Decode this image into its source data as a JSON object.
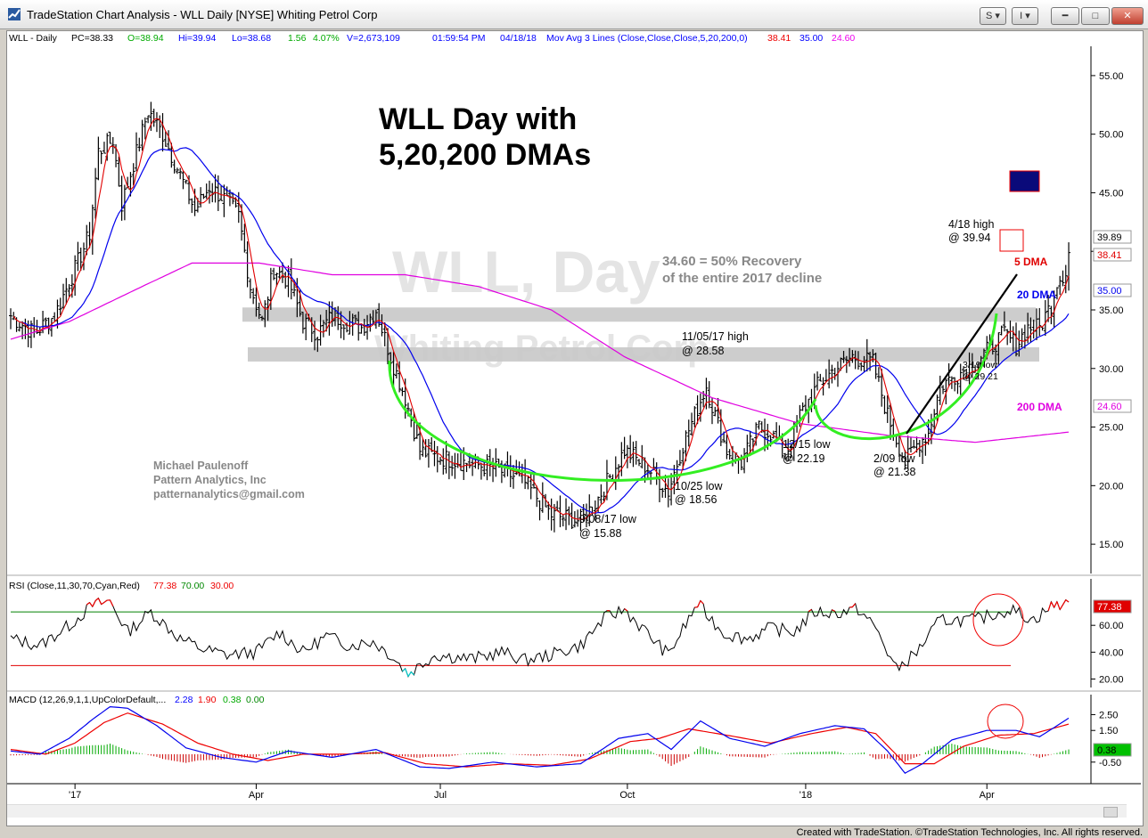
{
  "window": {
    "title": "TradeStation Chart Analysis - WLL Daily [NYSE] Whiting Petrol Corp",
    "btn_s": "S",
    "btn_i": "I",
    "footer": "Created with TradeStation. ©TradeStation Technologies, Inc. All rights reserved."
  },
  "colors": {
    "price": "#000000",
    "ma5": "#e00000",
    "ma20": "#0000ee",
    "ma200": "#e000e0",
    "cup": "#33ee22",
    "rsi_ob": "#008000",
    "rsi_os": "#e00000",
    "macd_up": "#00aa00",
    "macd_down": "#cc0000"
  },
  "chart_data": [
    {
      "type": "line",
      "panel": "price",
      "header": {
        "symbol": "WLL - Daily",
        "pc": "PC=38.33",
        "o": "O=38.94",
        "hi": "Hi=39.94",
        "lo": "Lo=38.68",
        "chg": "1.56",
        "pct": "4.07%",
        "v": "V=2,673,109",
        "time": "01:59:54 PM",
        "date": "04/18/18",
        "study": "Mov Avg 3 Lines (Close,Close,Close,5,20,200,0)",
        "m5": "38.41",
        "m20": "35.00",
        "m200": "24.60"
      },
      "title": "WLL Day with",
      "title2": "5,20,200 DMAs",
      "watermark1": "WLL, Day",
      "watermark2": "Whiting Petrol Corp",
      "ylim": [
        12.5,
        57.5
      ],
      "yticks": [
        "55.00",
        "50.00",
        "45.00",
        "40.00",
        "35.00",
        "30.00",
        "25.00",
        "20.00",
        "15.00"
      ],
      "ytick_values": [
        55,
        50,
        45,
        40,
        35,
        30,
        25,
        20,
        15
      ],
      "xticks": [
        "'17",
        "Apr",
        "Jul",
        "Oct",
        "'18",
        "Apr"
      ],
      "xtick_index": [
        22,
        84,
        147,
        211,
        272,
        334
      ],
      "n_bars": 370,
      "close_anchors": [
        [
          0,
          34.5
        ],
        [
          8,
          33.0
        ],
        [
          15,
          34.5
        ],
        [
          22,
          38.5
        ],
        [
          27,
          41.5
        ],
        [
          30,
          48.5
        ],
        [
          35,
          49.5
        ],
        [
          38,
          44.0
        ],
        [
          42,
          47.5
        ],
        [
          47,
          52.0
        ],
        [
          52,
          50.0
        ],
        [
          58,
          46.5
        ],
        [
          63,
          43.5
        ],
        [
          68,
          45.5
        ],
        [
          73,
          44.5
        ],
        [
          78,
          43.0
        ],
        [
          82,
          37.0
        ],
        [
          86,
          34.0
        ],
        [
          90,
          38.5
        ],
        [
          95,
          37.5
        ],
        [
          100,
          34.0
        ],
        [
          105,
          33.0
        ],
        [
          110,
          34.5
        ],
        [
          115,
          34.0
        ],
        [
          120,
          33.5
        ],
        [
          125,
          35.0
        ],
        [
          130,
          31.0
        ],
        [
          135,
          27.5
        ],
        [
          140,
          23.0
        ],
        [
          145,
          22.5
        ],
        [
          155,
          22.0
        ],
        [
          165,
          21.5
        ],
        [
          175,
          20.5
        ],
        [
          185,
          17.5
        ],
        [
          195,
          17.0
        ],
        [
          200,
          18.5
        ],
        [
          210,
          23.0
        ],
        [
          218,
          21.5
        ],
        [
          225,
          19.5
        ],
        [
          230,
          23.5
        ],
        [
          234,
          26.0
        ],
        [
          238,
          28.5
        ],
        [
          241,
          26.0
        ],
        [
          245,
          23.0
        ],
        [
          250,
          22.0
        ],
        [
          256,
          25.0
        ],
        [
          260,
          24.5
        ],
        [
          265,
          22.5
        ],
        [
          270,
          26.0
        ],
        [
          276,
          28.5
        ],
        [
          282,
          30.0
        ],
        [
          288,
          31.0
        ],
        [
          295,
          30.5
        ],
        [
          300,
          26.0
        ],
        [
          306,
          22.0
        ],
        [
          310,
          23.5
        ],
        [
          314,
          24.5
        ],
        [
          318,
          28.5
        ],
        [
          324,
          29.5
        ],
        [
          330,
          30.5
        ],
        [
          336,
          32.0
        ],
        [
          340,
          33.0
        ],
        [
          344,
          32.0
        ],
        [
          348,
          33.5
        ],
        [
          352,
          33.5
        ],
        [
          356,
          35.5
        ],
        [
          358,
          37.5
        ],
        [
          361,
          38.3
        ],
        [
          362,
          39.5
        ]
      ],
      "ma200_anchors": [
        [
          0,
          32.5
        ],
        [
          20,
          34.0
        ],
        [
          45,
          37.0
        ],
        [
          62,
          39.0
        ],
        [
          85,
          39.0
        ],
        [
          110,
          38.0
        ],
        [
          135,
          38.0
        ],
        [
          160,
          37.0
        ],
        [
          185,
          35.0
        ],
        [
          210,
          31.0
        ],
        [
          240,
          27.5
        ],
        [
          270,
          25.3
        ],
        [
          300,
          24.3
        ],
        [
          330,
          23.7
        ],
        [
          363,
          24.6
        ]
      ],
      "hline_values": [
        34.6,
        31.2
      ],
      "annotations": {
        "recovery1": "34.60 = 50% Recovery",
        "recovery2": "of the entire 2017 decline",
        "h418a": "4/18 high",
        "h418b": "@ 39.94",
        "h1105a": "11/05/17 high",
        "h1105b": "@ 28.58",
        "l1215a": "12/15 low",
        "l1215b": "@ 22.19",
        "l1025a": "10/25 low",
        "l1025b": "@ 18.56",
        "l0908a": "9/08/17 low",
        "l0908b": "@ 15.88",
        "l0209a": "2/09 low",
        "l0209b": "@ 21.38",
        "l0319a": "3/19 low",
        "l0319b": "@ 29.21",
        "dma5": "5 DMA",
        "dma20": "20 DMA",
        "dma200": "200 DMA",
        "author1": "Michael Paulenoff",
        "author2": "Pattern Analytics, Inc",
        "author3": "patternanalytics@gmail.com"
      },
      "last_labels": {
        "last": "39.89",
        "m5": "38.41",
        "m20": "35.00",
        "m200": "24.60"
      }
    },
    {
      "type": "line",
      "panel": "rsi",
      "header": {
        "name": "RSI (Close,11,30,70,Cyan,Red)",
        "v1": "77.38",
        "v2": "70.00",
        "v3": "30.00"
      },
      "ylim": [
        15,
        88
      ],
      "yticks": [
        "60.00",
        "40.00",
        "20.00"
      ],
      "ytick_values": [
        60,
        40,
        20
      ],
      "levels": [
        70,
        30
      ],
      "last_label": "77.38",
      "anchors": [
        [
          0,
          50
        ],
        [
          10,
          45
        ],
        [
          20,
          60
        ],
        [
          28,
          75
        ],
        [
          34,
          78
        ],
        [
          40,
          55
        ],
        [
          48,
          70
        ],
        [
          58,
          50
        ],
        [
          66,
          42
        ],
        [
          74,
          38
        ],
        [
          84,
          40
        ],
        [
          92,
          55
        ],
        [
          100,
          40
        ],
        [
          108,
          52
        ],
        [
          116,
          45
        ],
        [
          124,
          48
        ],
        [
          130,
          38
        ],
        [
          136,
          24
        ],
        [
          145,
          38
        ],
        [
          158,
          35
        ],
        [
          168,
          40
        ],
        [
          176,
          34
        ],
        [
          185,
          38
        ],
        [
          195,
          45
        ],
        [
          203,
          65
        ],
        [
          210,
          72
        ],
        [
          216,
          58
        ],
        [
          225,
          38
        ],
        [
          235,
          76
        ],
        [
          244,
          54
        ],
        [
          252,
          50
        ],
        [
          260,
          58
        ],
        [
          268,
          55
        ],
        [
          275,
          70
        ],
        [
          282,
          69
        ],
        [
          290,
          72
        ],
        [
          296,
          58
        ],
        [
          303,
          27
        ],
        [
          310,
          40
        ],
        [
          318,
          64
        ],
        [
          330,
          64
        ],
        [
          342,
          72
        ],
        [
          350,
          64
        ],
        [
          356,
          74
        ],
        [
          362,
          77.38
        ]
      ]
    },
    {
      "type": "bar",
      "panel": "macd",
      "header": {
        "name": "MACD (12,26,9,1,1,UpColorDefault,...",
        "v1": "2.28",
        "v2": "1.90",
        "v3": "0.38",
        "v4": "0.00"
      },
      "ylim": [
        -1.3,
        3.2
      ],
      "yticks": [
        "2.50",
        "1.50",
        "-0.50"
      ],
      "ytick_values": [
        2.5,
        1.5,
        -0.5
      ],
      "last_label": "0.38",
      "macd_anchors": [
        [
          0,
          0.2
        ],
        [
          10,
          0.0
        ],
        [
          20,
          1.0
        ],
        [
          28,
          2.2
        ],
        [
          34,
          3.0
        ],
        [
          40,
          2.9
        ],
        [
          50,
          1.8
        ],
        [
          60,
          0.4
        ],
        [
          72,
          -0.2
        ],
        [
          84,
          -0.5
        ],
        [
          95,
          0.2
        ],
        [
          110,
          -0.2
        ],
        [
          125,
          0.3
        ],
        [
          140,
          -0.8
        ],
        [
          150,
          -0.9
        ],
        [
          165,
          -0.5
        ],
        [
          180,
          -0.8
        ],
        [
          195,
          -0.6
        ],
        [
          208,
          1.0
        ],
        [
          218,
          1.3
        ],
        [
          226,
          0.3
        ],
        [
          236,
          2.1
        ],
        [
          246,
          1.0
        ],
        [
          258,
          0.5
        ],
        [
          270,
          1.3
        ],
        [
          282,
          1.8
        ],
        [
          292,
          1.6
        ],
        [
          300,
          0.2
        ],
        [
          306,
          -1.2
        ],
        [
          312,
          -0.6
        ],
        [
          322,
          0.9
        ],
        [
          334,
          1.5
        ],
        [
          344,
          1.5
        ],
        [
          352,
          1.1
        ],
        [
          358,
          1.8
        ],
        [
          362,
          2.28
        ]
      ],
      "signal_anchors": [
        [
          0,
          0.3
        ],
        [
          12,
          0.0
        ],
        [
          22,
          0.7
        ],
        [
          32,
          2.0
        ],
        [
          40,
          2.6
        ],
        [
          52,
          1.9
        ],
        [
          64,
          0.7
        ],
        [
          76,
          0.0
        ],
        [
          88,
          -0.4
        ],
        [
          100,
          0.0
        ],
        [
          114,
          0.0
        ],
        [
          128,
          0.1
        ],
        [
          142,
          -0.6
        ],
        [
          156,
          -0.8
        ],
        [
          170,
          -0.6
        ],
        [
          185,
          -0.7
        ],
        [
          198,
          -0.3
        ],
        [
          212,
          0.8
        ],
        [
          222,
          1.0
        ],
        [
          232,
          1.6
        ],
        [
          245,
          1.2
        ],
        [
          260,
          0.7
        ],
        [
          274,
          1.3
        ],
        [
          286,
          1.7
        ],
        [
          296,
          1.3
        ],
        [
          306,
          -0.6
        ],
        [
          316,
          -0.6
        ],
        [
          326,
          0.5
        ],
        [
          338,
          1.2
        ],
        [
          350,
          1.3
        ],
        [
          362,
          1.9
        ]
      ]
    }
  ]
}
